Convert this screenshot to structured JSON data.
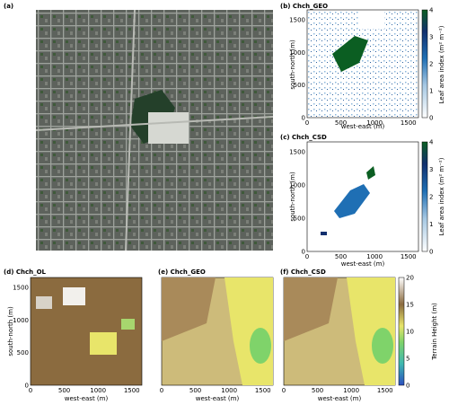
{
  "panels": {
    "a": {
      "label": "(a)"
    },
    "b": {
      "label": "(b) Chch_GEO",
      "xlabel": "west-east (m)",
      "ylabel": "south-north (m)",
      "colorbar_label": "Leaf area index (m² m⁻²)"
    },
    "c": {
      "label": "(c) Chch_CSD",
      "xlabel": "west-east (m)",
      "ylabel": "south-north (m)",
      "colorbar_label": "Leaf area index (m² m⁻²)"
    },
    "d": {
      "label": "(d) Chch_OL",
      "xlabel": "west-east (m)",
      "ylabel": "south-north (m)"
    },
    "e": {
      "label": "(e) Chch_GEO",
      "xlabel": "west-east (m)"
    },
    "f": {
      "label": "(f) Chch_CSD",
      "xlabel": "west-east (m)",
      "colorbar_label": "Terrain Height (m)"
    }
  },
  "axes": {
    "x_ticks": [
      "0",
      "500",
      "1000",
      "1500"
    ],
    "y_ticks": [
      "0",
      "500",
      "1000",
      "1500"
    ],
    "lai_ticks": [
      "0",
      "1",
      "2",
      "3",
      "4"
    ],
    "terrain_ticks": [
      "0",
      "5",
      "10",
      "15",
      "20"
    ]
  },
  "colors": {
    "lai_low": "#ffffff",
    "lai_mid": "#1f6fb4",
    "lai_high": "#0b5e22",
    "terrain_low": "#2b4fbf",
    "terrain_mid": "#e8e56a",
    "terrain_high": "#ffffff",
    "aerial_base": "#6b6f6a"
  }
}
